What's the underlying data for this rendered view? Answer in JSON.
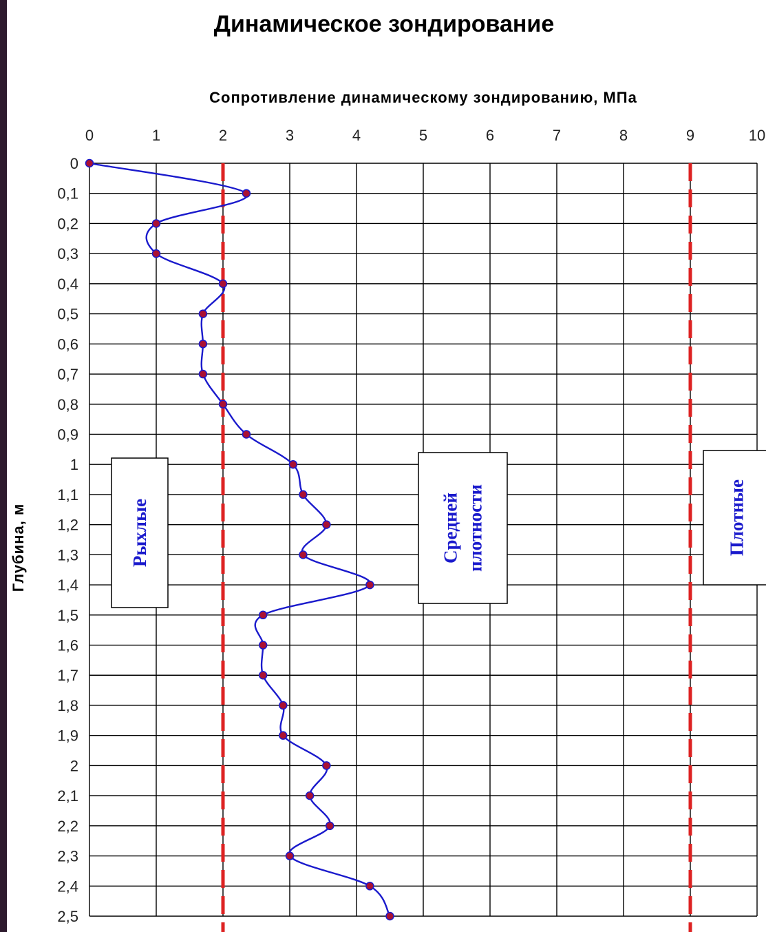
{
  "chart_data": {
    "type": "line",
    "title": "Динамическое зондирование",
    "xlabel": "Сопротивление динамическому зондированию, МПа",
    "ylabel": "Глубина, м",
    "x_axis_position": "top",
    "y_axis_inverted": true,
    "xlim": [
      0,
      10
    ],
    "ylim": [
      0,
      2.5
    ],
    "x_ticks": [
      "0",
      "1",
      "2",
      "3",
      "4",
      "5",
      "6",
      "7",
      "8",
      "9",
      "10"
    ],
    "y_ticks": [
      "0",
      "0,1",
      "0,2",
      "0,3",
      "0,4",
      "0,5",
      "0,6",
      "0,7",
      "0,8",
      "0,9",
      "1",
      "1,1",
      "1,2",
      "1,3",
      "1,4",
      "1,5",
      "1,6",
      "1,7",
      "1,8",
      "1,9",
      "2",
      "2,1",
      "2,2",
      "2,3",
      "2,4",
      "2,5"
    ],
    "grid": true,
    "series": [
      {
        "color": "#1a1acc",
        "marker_color": "#aa1133",
        "points": [
          {
            "x": 0,
            "y": 0
          },
          {
            "x": 2.35,
            "y": 0.1
          },
          {
            "x": 1.0,
            "y": 0.2
          },
          {
            "x": 1.0,
            "y": 0.3
          },
          {
            "x": 2.0,
            "y": 0.4
          },
          {
            "x": 1.7,
            "y": 0.5
          },
          {
            "x": 1.7,
            "y": 0.6
          },
          {
            "x": 1.7,
            "y": 0.7
          },
          {
            "x": 2.0,
            "y": 0.8
          },
          {
            "x": 2.35,
            "y": 0.9
          },
          {
            "x": 3.05,
            "y": 1.0
          },
          {
            "x": 3.2,
            "y": 1.1
          },
          {
            "x": 3.55,
            "y": 1.2
          },
          {
            "x": 3.2,
            "y": 1.3
          },
          {
            "x": 4.2,
            "y": 1.4
          },
          {
            "x": 2.6,
            "y": 1.5
          },
          {
            "x": 2.6,
            "y": 1.6
          },
          {
            "x": 2.6,
            "y": 1.7
          },
          {
            "x": 2.9,
            "y": 1.8
          },
          {
            "x": 2.9,
            "y": 1.9
          },
          {
            "x": 3.55,
            "y": 2.0
          },
          {
            "x": 3.3,
            "y": 2.1
          },
          {
            "x": 3.6,
            "y": 2.2
          },
          {
            "x": 3.0,
            "y": 2.3
          },
          {
            "x": 4.2,
            "y": 2.4
          },
          {
            "x": 4.5,
            "y": 2.5
          }
        ]
      }
    ],
    "threshold_lines": [
      {
        "x": 2,
        "color": "#dd2222",
        "style": "dashed"
      },
      {
        "x": 9,
        "color": "#dd2222",
        "style": "dashed"
      }
    ],
    "zone_labels": [
      {
        "text": "Рыхлые",
        "lines": [
          "Рыхлые"
        ]
      },
      {
        "text": "Средней плотности",
        "lines": [
          "Средней",
          "плотности"
        ]
      },
      {
        "text": "Плотные",
        "lines": [
          "Плотные"
        ]
      }
    ]
  }
}
